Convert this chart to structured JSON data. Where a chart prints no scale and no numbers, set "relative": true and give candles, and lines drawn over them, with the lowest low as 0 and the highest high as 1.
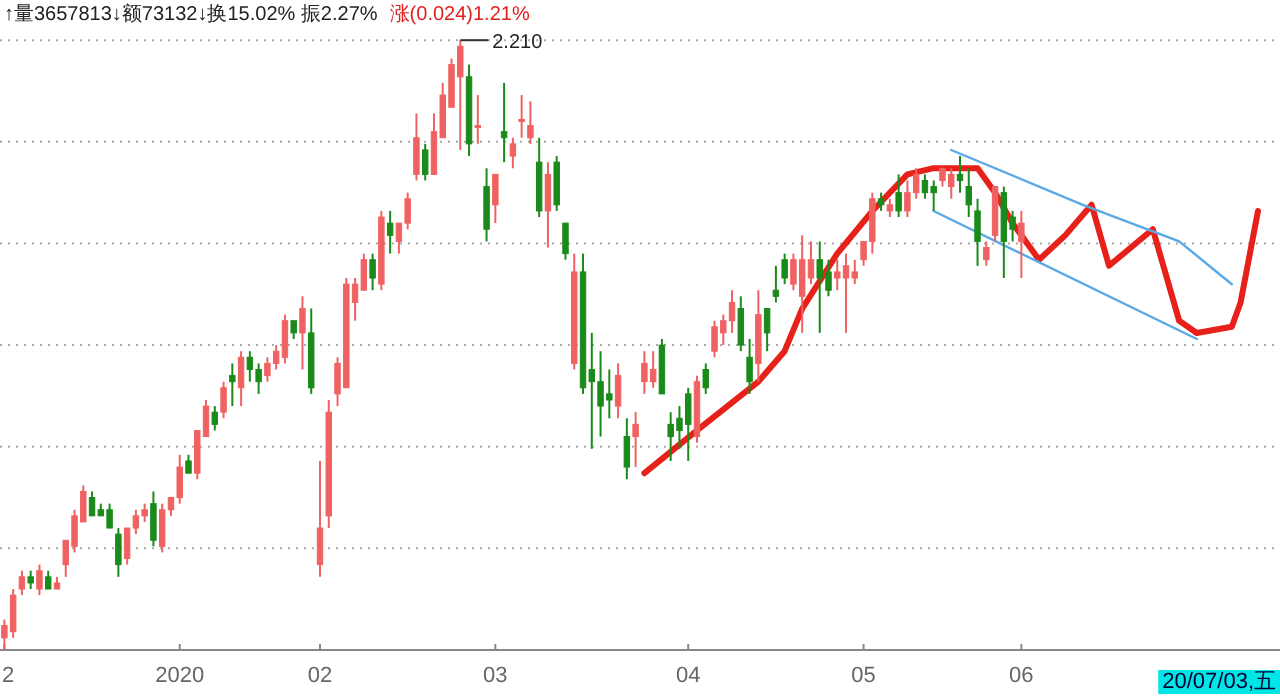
{
  "chart_data": {
    "type": "candlestick",
    "relative": true,
    "annotations": [
      "↑量3657813↓额73132↓换15.02% 振2.27%",
      "涨(0.024)1.21%",
      "2.210",
      "20/07/03,五"
    ],
    "categories": [
      "2",
      null,
      null,
      null,
      null,
      null,
      null,
      null,
      null,
      null,
      null,
      null,
      null,
      null,
      null,
      null,
      null,
      null,
      null,
      null,
      "2020",
      null,
      null,
      null,
      null,
      null,
      null,
      null,
      null,
      null,
      null,
      null,
      null,
      null,
      null,
      null,
      "02",
      null,
      null,
      null,
      null,
      null,
      null,
      null,
      null,
      null,
      null,
      null,
      null,
      null,
      null,
      null,
      null,
      null,
      null,
      null,
      "03",
      null,
      null,
      null,
      null,
      null,
      null,
      null,
      null,
      null,
      null,
      null,
      null,
      null,
      null,
      null,
      null,
      null,
      null,
      null,
      null,
      null,
      "04",
      null,
      null,
      null,
      null,
      null,
      null,
      null,
      null,
      null,
      null,
      null,
      null,
      null,
      null,
      null,
      null,
      null,
      null,
      null,
      "05",
      null,
      null,
      null,
      null,
      null,
      null,
      null,
      null,
      null,
      null,
      null,
      null,
      null,
      null,
      null,
      null,
      null,
      "06",
      null,
      null,
      null,
      null,
      null,
      null,
      null,
      null,
      null,
      null,
      null,
      null,
      null,
      null,
      null,
      null,
      null,
      null,
      null,
      null,
      null,
      null,
      null,
      null,
      null,
      null,
      null,
      null,
      null
    ],
    "grid": "y",
    "tick_labels": "x",
    "ohlc": [
      [
        0.02,
        0.05,
        0,
        0.04
      ],
      [
        0.03,
        0.1,
        0.02,
        0.09
      ],
      [
        0.1,
        0.13,
        0.09,
        0.12
      ],
      [
        0.12,
        0.13,
        0.1,
        0.11
      ],
      [
        0.1,
        0.14,
        0.09,
        0.13
      ],
      [
        0.12,
        0.13,
        0.1,
        0.1
      ],
      [
        0.1,
        0.12,
        0.1,
        0.11
      ],
      [
        0.14,
        0.18,
        0.12,
        0.18
      ],
      [
        0.17,
        0.23,
        0.16,
        0.22
      ],
      [
        0.21,
        0.27,
        0.21,
        0.26
      ],
      [
        0.25,
        0.26,
        0.22,
        0.22
      ],
      [
        0.23,
        0.24,
        0.22,
        0.22
      ],
      [
        0.23,
        0.24,
        0.2,
        0.2
      ],
      [
        0.19,
        0.2,
        0.12,
        0.14
      ],
      [
        0.15,
        0.2,
        0.14,
        0.2
      ],
      [
        0.2,
        0.23,
        0.19,
        0.22
      ],
      [
        0.22,
        0.24,
        0.21,
        0.23
      ],
      [
        0.24,
        0.26,
        0.17,
        0.18
      ],
      [
        0.17,
        0.24,
        0.16,
        0.23
      ],
      [
        0.23,
        0.25,
        0.22,
        0.25
      ],
      [
        0.25,
        0.32,
        0.24,
        0.3
      ],
      [
        0.31,
        0.32,
        0.29,
        0.29
      ],
      [
        0.29,
        0.36,
        0.28,
        0.36
      ],
      [
        0.35,
        0.41,
        0.35,
        0.4
      ],
      [
        0.39,
        0.4,
        0.36,
        0.37
      ],
      [
        0.39,
        0.44,
        0.38,
        0.43
      ],
      [
        0.45,
        0.47,
        0.4,
        0.44
      ],
      [
        0.43,
        0.49,
        0.4,
        0.48
      ],
      [
        0.48,
        0.49,
        0.44,
        0.46
      ],
      [
        0.46,
        0.47,
        0.42,
        0.44
      ],
      [
        0.45,
        0.48,
        0.44,
        0.47
      ],
      [
        0.47,
        0.5,
        0.46,
        0.49
      ],
      [
        0.48,
        0.55,
        0.47,
        0.54
      ],
      [
        0.54,
        0.54,
        0.51,
        0.52
      ],
      [
        0.52,
        0.58,
        0.46,
        0.56
      ],
      [
        0.52,
        0.56,
        0.42,
        0.43
      ],
      [
        0.14,
        0.31,
        0.12,
        0.2
      ],
      [
        0.22,
        0.41,
        0.2,
        0.39
      ],
      [
        0.42,
        0.48,
        0.4,
        0.47
      ],
      [
        0.43,
        0.61,
        0.43,
        0.6
      ],
      [
        0.57,
        0.61,
        0.54,
        0.6
      ],
      [
        0.59,
        0.65,
        0.59,
        0.64
      ],
      [
        0.64,
        0.65,
        0.59,
        0.61
      ],
      [
        0.6,
        0.72,
        0.59,
        0.71
      ],
      [
        0.7,
        0.72,
        0.65,
        0.68
      ],
      [
        0.67,
        0.7,
        0.65,
        0.7
      ],
      [
        0.7,
        0.75,
        0.69,
        0.74
      ],
      [
        0.78,
        0.88,
        0.77,
        0.84
      ],
      [
        0.82,
        0.83,
        0.77,
        0.78
      ],
      [
        0.78,
        0.88,
        0.78,
        0.85
      ],
      [
        0.84,
        0.93,
        0.84,
        0.91
      ],
      [
        0.89,
        0.97,
        0.89,
        0.96
      ],
      [
        0.94,
        1.0,
        0.82,
        0.99
      ],
      [
        0.94,
        0.96,
        0.81,
        0.83
      ],
      [
        0.86,
        0.91,
        0.83,
        0.86
      ],
      [
        0.76,
        0.79,
        0.67,
        0.69
      ],
      [
        0.73,
        0.78,
        0.7,
        0.78
      ],
      [
        0.85,
        0.93,
        0.8,
        0.84
      ],
      [
        0.81,
        0.84,
        0.79,
        0.83
      ],
      [
        0.87,
        0.91,
        0.84,
        0.87
      ],
      [
        0.84,
        0.9,
        0.83,
        0.86
      ],
      [
        0.8,
        0.84,
        0.71,
        0.72
      ],
      [
        0.72,
        0.8,
        0.66,
        0.78
      ],
      [
        0.8,
        0.81,
        0.72,
        0.73
      ],
      [
        0.7,
        0.7,
        0.64,
        0.65
      ],
      [
        0.47,
        0.65,
        0.46,
        0.62
      ],
      [
        0.62,
        0.65,
        0.42,
        0.43
      ],
      [
        0.46,
        0.52,
        0.33,
        0.44
      ],
      [
        0.44,
        0.49,
        0.35,
        0.4
      ],
      [
        0.42,
        0.46,
        0.38,
        0.41
      ],
      [
        0.4,
        0.47,
        0.38,
        0.45
      ],
      [
        0.35,
        0.38,
        0.28,
        0.3
      ],
      [
        0.35,
        0.39,
        0.3,
        0.37
      ],
      [
        0.44,
        0.49,
        0.42,
        0.47
      ],
      [
        0.44,
        0.49,
        0.43,
        0.46
      ],
      [
        0.5,
        0.51,
        0.42,
        0.42
      ],
      [
        0.37,
        0.39,
        0.31,
        0.35
      ],
      [
        0.38,
        0.4,
        0.33,
        0.36
      ],
      [
        0.42,
        0.43,
        0.31,
        0.37
      ],
      [
        0.35,
        0.45,
        0.34,
        0.44
      ],
      [
        0.46,
        0.47,
        0.42,
        0.43
      ],
      [
        0.49,
        0.54,
        0.48,
        0.53
      ],
      [
        0.52,
        0.55,
        0.5,
        0.54
      ],
      [
        0.54,
        0.59,
        0.52,
        0.57
      ],
      [
        0.56,
        0.58,
        0.49,
        0.5
      ],
      [
        0.48,
        0.51,
        0.42,
        0.44
      ],
      [
        0.47,
        0.59,
        0.44,
        0.55
      ],
      [
        0.56,
        0.56,
        0.49,
        0.52
      ],
      [
        0.59,
        0.63,
        0.57,
        0.58
      ],
      [
        0.64,
        0.65,
        0.6,
        0.61
      ],
      [
        0.6,
        0.65,
        0.59,
        0.64
      ],
      [
        0.58,
        0.68,
        0.52,
        0.64
      ],
      [
        0.61,
        0.67,
        0.6,
        0.64
      ],
      [
        0.64,
        0.67,
        0.52,
        0.61
      ],
      [
        0.62,
        0.64,
        0.58,
        0.59
      ],
      [
        0.61,
        0.64,
        0.59,
        0.62
      ],
      [
        0.61,
        0.65,
        0.52,
        0.63
      ],
      [
        0.61,
        0.64,
        0.6,
        0.62
      ],
      [
        0.64,
        0.67,
        0.63,
        0.67
      ],
      [
        0.67,
        0.75,
        0.65,
        0.74
      ],
      [
        0.74,
        0.75,
        0.72,
        0.73
      ],
      [
        0.72,
        0.74,
        0.71,
        0.73
      ],
      [
        0.75,
        0.78,
        0.71,
        0.72
      ],
      [
        0.72,
        0.77,
        0.71,
        0.75
      ],
      [
        0.75,
        0.79,
        0.74,
        0.78
      ],
      [
        0.77,
        0.78,
        0.74,
        0.75
      ],
      [
        0.76,
        0.77,
        0.72,
        0.75
      ],
      [
        0.77,
        0.79,
        0.76,
        0.79
      ],
      [
        0.76,
        0.79,
        0.74,
        0.78
      ],
      [
        0.78,
        0.81,
        0.75,
        0.77
      ],
      [
        0.76,
        0.79,
        0.71,
        0.73
      ],
      [
        0.72,
        0.74,
        0.63,
        0.67
      ],
      [
        0.64,
        0.67,
        0.63,
        0.66
      ],
      [
        0.68,
        0.76,
        0.67,
        0.76
      ],
      [
        0.75,
        0.76,
        0.61,
        0.67
      ],
      [
        0.71,
        0.72,
        0.67,
        0.69
      ],
      [
        0.67,
        0.72,
        0.61,
        0.7
      ],
      null,
      null,
      null,
      null,
      null,
      null,
      null,
      null,
      null,
      null,
      null,
      null,
      null,
      null,
      null,
      null,
      null,
      null,
      null,
      null,
      null,
      null,
      null,
      null,
      null,
      null,
      null,
      null,
      null
    ],
    "series": [
      {
        "type": "line",
        "color": "#e8201a",
        "values": [
          null,
          null,
          null,
          null,
          null,
          null,
          null,
          null,
          null,
          null,
          null,
          null,
          null,
          null,
          null,
          null,
          null,
          null,
          null,
          null,
          null,
          null,
          null,
          null,
          null,
          null,
          null,
          null,
          null,
          null,
          null,
          null,
          null,
          null,
          null,
          null,
          null,
          null,
          null,
          null,
          null,
          null,
          null,
          null,
          null,
          null,
          null,
          null,
          null,
          null,
          null,
          null,
          null,
          null,
          null,
          null,
          null,
          null,
          null,
          null,
          null,
          null,
          null,
          null,
          null,
          null,
          null,
          null,
          null,
          null,
          null,
          null,
          null,
          0.29,
          null,
          null,
          null,
          null,
          null,
          0.36,
          null,
          null,
          null,
          null,
          null,
          null,
          0.44,
          null,
          null,
          0.49,
          null,
          0.56,
          null,
          null,
          null,
          0.65,
          null,
          null,
          null,
          0.72,
          null,
          null,
          null,
          0.78,
          null,
          null,
          0.79,
          null,
          null,
          null,
          null,
          0.79,
          null,
          0.75,
          null,
          0.7,
          null,
          null,
          0.64,
          null,
          null,
          0.68,
          null,
          null,
          0.73,
          null,
          0.63,
          null,
          null,
          null,
          null,
          0.69,
          null,
          null,
          0.54,
          null,
          0.52,
          null,
          null,
          null,
          0.53,
          0.57,
          null,
          0.72,
          null,
          null
        ]
      },
      {
        "type": "line",
        "color": "#5aa9e6",
        "values": [
          null,
          null,
          null,
          null,
          null,
          null,
          null,
          null,
          null,
          null,
          null,
          null,
          null,
          null,
          null,
          null,
          null,
          null,
          null,
          null,
          null,
          null,
          null,
          null,
          null,
          null,
          null,
          null,
          null,
          null,
          null,
          null,
          null,
          null,
          null,
          null,
          null,
          null,
          null,
          null,
          null,
          null,
          null,
          null,
          null,
          null,
          null,
          null,
          null,
          null,
          null,
          null,
          null,
          null,
          null,
          null,
          null,
          null,
          null,
          null,
          null,
          null,
          null,
          null,
          null,
          null,
          null,
          null,
          null,
          null,
          null,
          null,
          null,
          null,
          null,
          null,
          null,
          null,
          null,
          null,
          null,
          null,
          null,
          null,
          null,
          null,
          null,
          null,
          null,
          null,
          null,
          null,
          null,
          null,
          null,
          null,
          null,
          null,
          null,
          null,
          null,
          null,
          null,
          null,
          null,
          null,
          null,
          null,
          0.82,
          null,
          null,
          null,
          null,
          null,
          null,
          null,
          null,
          null,
          null,
          null,
          null,
          null,
          null,
          0.73,
          null,
          null,
          null,
          null,
          null,
          null,
          null,
          null,
          null,
          null,
          0.67,
          null,
          null,
          null,
          null,
          null,
          0.6,
          null,
          null,
          null,
          null,
          null
        ]
      },
      {
        "type": "line",
        "color": "#5aa9e6",
        "values": [
          null,
          null,
          null,
          null,
          null,
          null,
          null,
          null,
          null,
          null,
          null,
          null,
          null,
          null,
          null,
          null,
          null,
          null,
          null,
          null,
          null,
          null,
          null,
          null,
          null,
          null,
          null,
          null,
          null,
          null,
          null,
          null,
          null,
          null,
          null,
          null,
          null,
          null,
          null,
          null,
          null,
          null,
          null,
          null,
          null,
          null,
          null,
          null,
          null,
          null,
          null,
          null,
          null,
          null,
          null,
          null,
          null,
          null,
          null,
          null,
          null,
          null,
          null,
          null,
          null,
          null,
          null,
          null,
          null,
          null,
          null,
          null,
          null,
          null,
          null,
          null,
          null,
          null,
          null,
          null,
          null,
          null,
          null,
          null,
          null,
          null,
          null,
          null,
          null,
          null,
          null,
          null,
          null,
          null,
          null,
          null,
          null,
          null,
          null,
          null,
          null,
          null,
          null,
          null,
          null,
          null,
          0.72,
          null,
          null,
          null,
          null,
          null,
          null,
          null,
          null,
          null,
          null,
          null,
          null,
          null,
          null,
          null,
          null,
          null,
          null,
          null,
          null,
          null,
          null,
          null,
          null,
          null,
          null,
          null,
          null,
          null,
          0.51,
          null,
          null,
          null,
          null,
          null,
          null,
          null,
          null,
          null
        ]
      }
    ]
  }
}
